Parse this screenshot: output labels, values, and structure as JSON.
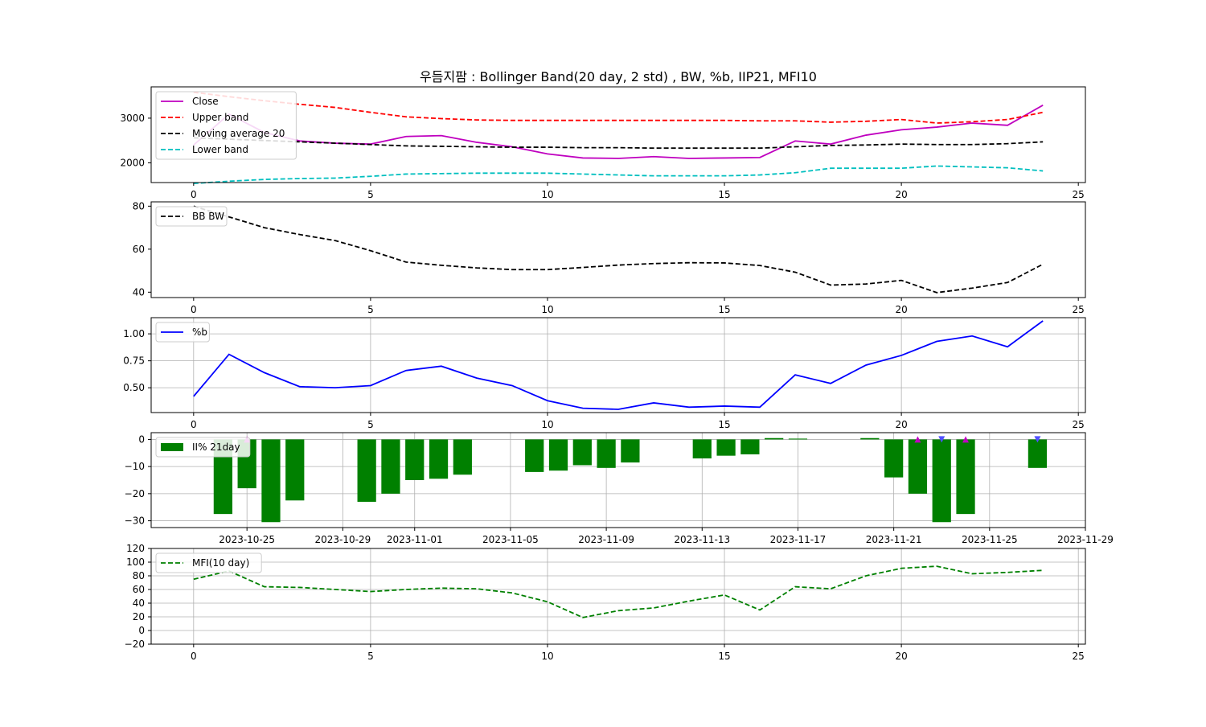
{
  "title": "우듬지팜 : Bollinger Band(20 day, 2 std) , BW, %b, IIP21, MFI10",
  "chart_data": [
    {
      "type": "line",
      "x": [
        0,
        1,
        2,
        3,
        4,
        5,
        6,
        7,
        8,
        9,
        10,
        11,
        12,
        13,
        14,
        15,
        16,
        17,
        18,
        19,
        20,
        21,
        22,
        23,
        24
      ],
      "xlim": [
        -1.2,
        25.2
      ],
      "xticks": [
        0,
        5,
        10,
        15,
        20,
        25
      ],
      "ylim": [
        1560,
        3700
      ],
      "yticks": [
        2000,
        3000
      ],
      "ytick_labels": [
        "2000",
        "3000"
      ],
      "grid": false,
      "legend_position": "upper-left",
      "series": [
        {
          "name": "Close",
          "color": "#bf00bf",
          "dash": "solid",
          "values": [
            2400,
            3090,
            2680,
            2490,
            2440,
            2420,
            2590,
            2610,
            2460,
            2360,
            2200,
            2110,
            2100,
            2140,
            2100,
            2110,
            2120,
            2490,
            2420,
            2620,
            2740,
            2800,
            2890,
            2840,
            3290
          ]
        },
        {
          "name": "Upper band",
          "color": "#ff0000",
          "dash": "dashed",
          "values": [
            3580,
            3480,
            3390,
            3310,
            3240,
            3130,
            3030,
            2990,
            2960,
            2950,
            2950,
            2950,
            2950,
            2950,
            2950,
            2950,
            2940,
            2940,
            2910,
            2930,
            2970,
            2890,
            2920,
            2970,
            3130
          ]
        },
        {
          "name": "Moving average 20",
          "color": "#000000",
          "dash": "dashed",
          "values": [
            2560,
            2530,
            2500,
            2470,
            2440,
            2410,
            2380,
            2370,
            2360,
            2350,
            2350,
            2340,
            2340,
            2330,
            2330,
            2330,
            2330,
            2360,
            2390,
            2400,
            2420,
            2410,
            2410,
            2430,
            2470
          ]
        },
        {
          "name": "Lower band",
          "color": "#00bfbf",
          "dash": "dashed",
          "values": [
            1540,
            1590,
            1630,
            1650,
            1660,
            1700,
            1750,
            1760,
            1770,
            1770,
            1770,
            1750,
            1730,
            1710,
            1710,
            1710,
            1730,
            1780,
            1880,
            1880,
            1880,
            1930,
            1910,
            1890,
            1820
          ]
        }
      ]
    },
    {
      "type": "line",
      "x": [
        0,
        1,
        2,
        3,
        4,
        5,
        6,
        7,
        8,
        9,
        10,
        11,
        12,
        13,
        14,
        15,
        16,
        17,
        18,
        19,
        20,
        21,
        22,
        23,
        24
      ],
      "xlim": [
        -1.2,
        25.2
      ],
      "xticks": [
        0,
        5,
        10,
        15,
        20,
        25
      ],
      "ylim": [
        37.5,
        82
      ],
      "yticks": [
        40,
        60,
        80
      ],
      "ytick_labels": [
        "40",
        "60",
        "80"
      ],
      "grid": false,
      "legend_position": "upper-left",
      "series": [
        {
          "name": "BB BW",
          "color": "#000000",
          "dash": "dashed",
          "values": [
            80,
            75,
            70,
            66.8,
            64,
            59.3,
            54,
            52.5,
            51.3,
            50.5,
            50.5,
            51.5,
            52.6,
            53.3,
            53.7,
            53.6,
            52.4,
            49.3,
            43.3,
            43.8,
            45.5,
            39.8,
            41.9,
            44.5,
            53
          ]
        }
      ]
    },
    {
      "type": "line",
      "x": [
        0,
        1,
        2,
        3,
        4,
        5,
        6,
        7,
        8,
        9,
        10,
        11,
        12,
        13,
        14,
        15,
        16,
        17,
        18,
        19,
        20,
        21,
        22,
        23,
        24
      ],
      "xlim": [
        -1.2,
        25.2
      ],
      "xticks": [
        0,
        5,
        10,
        15,
        20,
        25
      ],
      "ylim": [
        0.27,
        1.15
      ],
      "yticks": [
        0.5,
        0.75,
        1.0
      ],
      "ytick_labels": [
        "0.50",
        "0.75",
        "1.00"
      ],
      "grid": true,
      "legend_position": "upper-left",
      "series": [
        {
          "name": "%b",
          "color": "#0000ff",
          "dash": "solid",
          "values": [
            0.42,
            0.81,
            0.64,
            0.51,
            0.5,
            0.52,
            0.66,
            0.7,
            0.59,
            0.52,
            0.38,
            0.31,
            0.3,
            0.36,
            0.32,
            0.33,
            0.32,
            0.62,
            0.54,
            0.71,
            0.8,
            0.93,
            0.98,
            0.88,
            1.12
          ]
        }
      ]
    },
    {
      "type": "bar",
      "x_dates": [
        "2023-10-24",
        "2023-10-25",
        "2023-10-26",
        "2023-10-27",
        "2023-10-30",
        "2023-10-31",
        "2023-11-01",
        "2023-11-02",
        "2023-11-03",
        "2023-11-06",
        "2023-11-07",
        "2023-11-08",
        "2023-11-09",
        "2023-11-10",
        "2023-11-13",
        "2023-11-14",
        "2023-11-15",
        "2023-11-16",
        "2023-11-17",
        "2023-11-20",
        "2023-11-21",
        "2023-11-22",
        "2023-11-23",
        "2023-11-24",
        "2023-11-27"
      ],
      "values": [
        -27.5,
        -18,
        -30.5,
        -22.5,
        -23,
        -20,
        -15,
        -14.5,
        -13,
        -12,
        -11.5,
        -9.5,
        -10.5,
        -8.5,
        -7,
        -6,
        -5.5,
        0.5,
        0.3,
        0.5,
        -14,
        -20,
        -30.5,
        -27.5,
        -10.5
      ],
      "xlim": [
        "2023-10-21",
        "2023-11-29"
      ],
      "xticks": [
        "2023-10-25",
        "2023-10-29",
        "2023-11-01",
        "2023-11-05",
        "2023-11-09",
        "2023-11-13",
        "2023-11-17",
        "2023-11-21",
        "2023-11-25",
        "2023-11-29"
      ],
      "ylim": [
        -32.5,
        2.5
      ],
      "yticks": [
        0,
        -10,
        -20,
        -30
      ],
      "ytick_labels": [
        "0",
        "−10",
        "−20",
        "−30"
      ],
      "grid": true,
      "legend_position": "upper-left",
      "color": "#008000",
      "series_name": "II% 21day",
      "markers_up": [
        "2023-10-25",
        "2023-11-22",
        "2023-11-24"
      ],
      "markers_down": [
        "2023-11-23",
        "2023-11-27"
      ]
    },
    {
      "type": "line",
      "x": [
        0,
        1,
        2,
        3,
        4,
        5,
        6,
        7,
        8,
        9,
        10,
        11,
        12,
        13,
        14,
        15,
        16,
        17,
        18,
        19,
        20,
        21,
        22,
        23,
        24
      ],
      "xlim": [
        -1.2,
        25.2
      ],
      "xticks": [
        0,
        5,
        10,
        15,
        20,
        25
      ],
      "ylim": [
        -20,
        120
      ],
      "yticks": [
        -20,
        0,
        20,
        40,
        60,
        80,
        100,
        120
      ],
      "ytick_labels": [
        "−20",
        "0",
        "20",
        "40",
        "60",
        "80",
        "100",
        "120"
      ],
      "grid": true,
      "legend_position": "upper-left",
      "series": [
        {
          "name": "MFI(10 day)",
          "color": "#008000",
          "dash": "dashed",
          "values": [
            75,
            87,
            64,
            63,
            60,
            57,
            60,
            62,
            61,
            55,
            42,
            19,
            29,
            33,
            43,
            52,
            30,
            64,
            61,
            80,
            91,
            94,
            83,
            85,
            88
          ]
        }
      ]
    }
  ],
  "colors": {
    "marker_up": "#bf00bf",
    "marker_down": "#5050ff",
    "grid": "#b0b0b0"
  }
}
